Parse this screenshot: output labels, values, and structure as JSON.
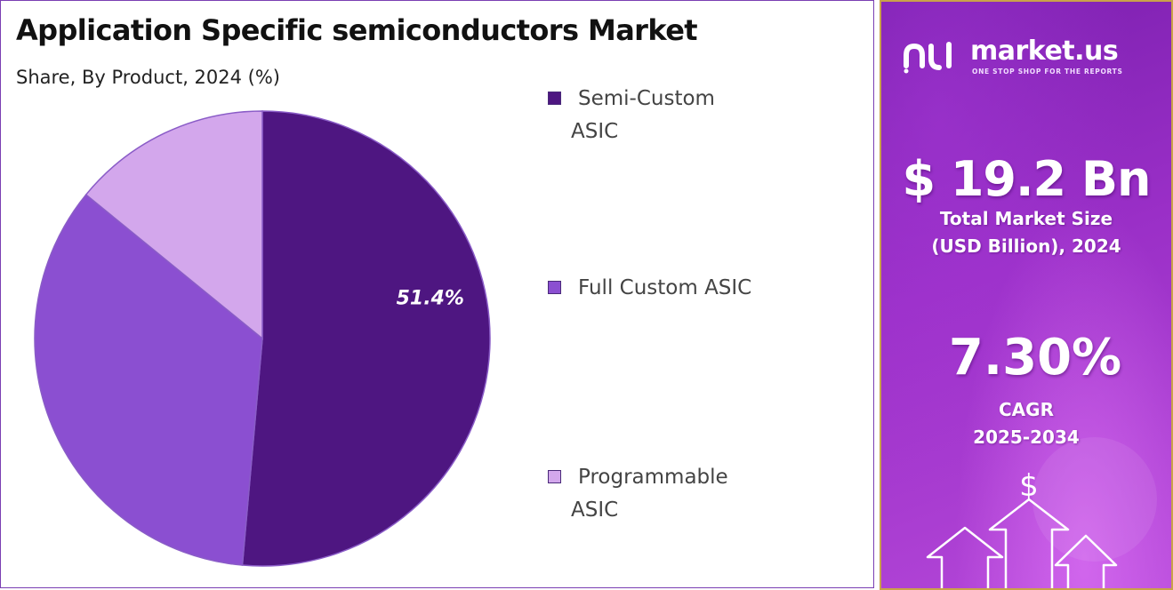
{
  "title": "Application Specific semiconductors Market",
  "subtitle": "Share, By Product, 2024 (%)",
  "chart_data": {
    "type": "pie",
    "categories": [
      "Semi-Custom ASIC",
      "Full Custom ASIC",
      "Programmable ASIC"
    ],
    "values": [
      51.4,
      34.5,
      14.1
    ],
    "data_labels": [
      "51.4%",
      "",
      ""
    ],
    "colors": [
      "#4e1681",
      "#8b4fd1",
      "#d3a7ec"
    ],
    "legend_position": "right"
  },
  "legend": [
    {
      "line1": "Semi-Custom",
      "line2": "ASIC",
      "color": "#4e1681"
    },
    {
      "line1": "Full Custom ASIC",
      "line2": "",
      "color": "#8b4fd1"
    },
    {
      "line1": "Programmable",
      "line2": "ASIC",
      "color": "#d3a7ec"
    }
  ],
  "brand": {
    "name": "market.us",
    "tagline": "ONE STOP SHOP FOR THE REPORTS"
  },
  "stats": {
    "market_size": "$ 19.2 Bn",
    "market_size_label_1": "Total Market Size",
    "market_size_label_2": "(USD Billion), 2024",
    "cagr": "7.30%",
    "cagr_label_1": "CAGR",
    "cagr_label_2": "2025-2034"
  },
  "decor": {
    "currency_symbol": "$"
  }
}
